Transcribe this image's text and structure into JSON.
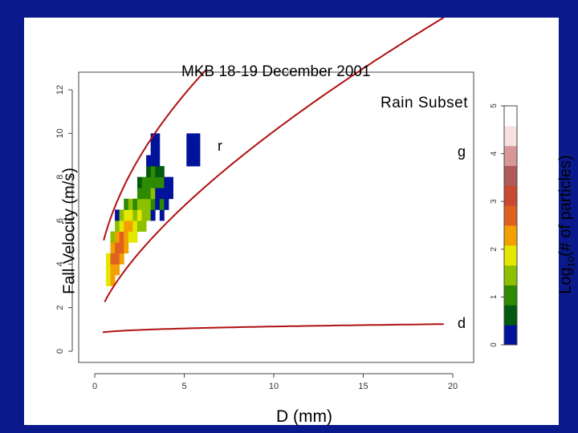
{
  "chart_data": {
    "type": "heatmap",
    "title": "MKB 18-19 December 2001",
    "subtitle": "Rain Subset",
    "xlabel": "D (mm)",
    "ylabel": "Fall Velocity (m/s)",
    "colorbar_label": "Log10(# of particles)",
    "colorbar_label_main": "Log",
    "colorbar_label_sub": "10",
    "colorbar_label_rest": "(# of particles)",
    "xlim": [
      0,
      20
    ],
    "ylim": [
      0,
      12
    ],
    "x_ticks": [
      "0",
      "5",
      "10",
      "15",
      "20"
    ],
    "y_ticks": [
      "0",
      "2",
      "4",
      "6",
      "8",
      "10",
      "12"
    ],
    "colorbar_lim": [
      0,
      5
    ],
    "colorbar_ticks": [
      "0",
      "1",
      "2",
      "3",
      "4",
      "5"
    ],
    "colorbar_colors": [
      "#00139a",
      "#005a10",
      "#2e8a00",
      "#8cc000",
      "#e4e800",
      "#f2a000",
      "#e06020",
      "#c84a30",
      "#b05a5a",
      "#d89898",
      "#f6e0e0",
      "#ffffff"
    ],
    "grid": false,
    "curves": [
      {
        "name": "r",
        "a": 2.1,
        "b": 4.26,
        "c": 0.51,
        "x0": 0.5,
        "x1": 6.2,
        "color": "#b01010"
      },
      {
        "name": "g",
        "a": 1.0,
        "b": 1.9,
        "c": 0.68,
        "x0": 0.55,
        "x1": 19.5,
        "color": "#b01010"
      },
      {
        "name": "d",
        "a": 0.75,
        "b": 0.16,
        "c": 0.38,
        "x0": 0.45,
        "x1": 19.5,
        "color": "#b01010"
      }
    ],
    "curve_labels": [
      "r",
      "g",
      "d"
    ],
    "bin_width_mm": 0.25,
    "bin_height_ms": 0.5,
    "cells": [
      {
        "x": 0.75,
        "y": 3.25,
        "v": 1.9
      },
      {
        "x": 0.75,
        "y": 3.75,
        "v": 2.0
      },
      {
        "x": 0.75,
        "y": 4.25,
        "v": 2.1
      },
      {
        "x": 1.0,
        "y": 3.25,
        "v": 2.3
      },
      {
        "x": 1.0,
        "y": 3.75,
        "v": 2.6
      },
      {
        "x": 1.0,
        "y": 4.25,
        "v": 2.8
      },
      {
        "x": 1.0,
        "y": 4.75,
        "v": 2.4
      },
      {
        "x": 1.0,
        "y": 5.25,
        "v": 1.8
      },
      {
        "x": 1.25,
        "y": 3.75,
        "v": 2.3
      },
      {
        "x": 1.25,
        "y": 4.25,
        "v": 2.9
      },
      {
        "x": 1.25,
        "y": 4.75,
        "v": 3.1
      },
      {
        "x": 1.25,
        "y": 5.25,
        "v": 2.6
      },
      {
        "x": 1.25,
        "y": 5.75,
        "v": 1.7
      },
      {
        "x": 1.25,
        "y": 6.25,
        "v": 0.3
      },
      {
        "x": 1.5,
        "y": 4.25,
        "v": 2.6
      },
      {
        "x": 1.5,
        "y": 4.75,
        "v": 3.0
      },
      {
        "x": 1.5,
        "y": 5.25,
        "v": 2.9
      },
      {
        "x": 1.5,
        "y": 5.75,
        "v": 2.2
      },
      {
        "x": 1.5,
        "y": 6.25,
        "v": 1.5
      },
      {
        "x": 1.75,
        "y": 4.75,
        "v": 2.4
      },
      {
        "x": 1.75,
        "y": 5.25,
        "v": 2.7
      },
      {
        "x": 1.75,
        "y": 5.75,
        "v": 2.6
      },
      {
        "x": 1.75,
        "y": 6.25,
        "v": 1.9
      },
      {
        "x": 1.75,
        "y": 6.75,
        "v": 1.2
      },
      {
        "x": 2.0,
        "y": 5.25,
        "v": 2.2
      },
      {
        "x": 2.0,
        "y": 5.75,
        "v": 2.3
      },
      {
        "x": 2.0,
        "y": 6.25,
        "v": 2.1
      },
      {
        "x": 2.0,
        "y": 6.75,
        "v": 1.5
      },
      {
        "x": 2.25,
        "y": 5.25,
        "v": 1.9
      },
      {
        "x": 2.25,
        "y": 5.75,
        "v": 2.0
      },
      {
        "x": 2.25,
        "y": 6.25,
        "v": 1.8
      },
      {
        "x": 2.25,
        "y": 6.75,
        "v": 1.3
      },
      {
        "x": 2.5,
        "y": 5.75,
        "v": 1.8
      },
      {
        "x": 2.5,
        "y": 6.25,
        "v": 1.9
      },
      {
        "x": 2.5,
        "y": 6.75,
        "v": 1.6
      },
      {
        "x": 2.5,
        "y": 7.25,
        "v": 1.2
      },
      {
        "x": 2.5,
        "y": 7.75,
        "v": 0.9
      },
      {
        "x": 2.75,
        "y": 5.75,
        "v": 1.4
      },
      {
        "x": 2.75,
        "y": 6.25,
        "v": 1.5
      },
      {
        "x": 2.75,
        "y": 6.75,
        "v": 1.7
      },
      {
        "x": 2.75,
        "y": 7.25,
        "v": 1.2
      },
      {
        "x": 2.75,
        "y": 7.75,
        "v": 1.0
      },
      {
        "x": 3.0,
        "y": 6.25,
        "v": 1.4
      },
      {
        "x": 3.0,
        "y": 6.75,
        "v": 1.6
      },
      {
        "x": 3.0,
        "y": 7.25,
        "v": 1.3
      },
      {
        "x": 3.0,
        "y": 7.75,
        "v": 1.1
      },
      {
        "x": 3.0,
        "y": 8.25,
        "v": 0.9
      },
      {
        "x": 3.0,
        "y": 8.75,
        "v": 0.3
      },
      {
        "x": 3.25,
        "y": 6.25,
        "v": 0.3
      },
      {
        "x": 3.25,
        "y": 6.75,
        "v": 1.2
      },
      {
        "x": 3.25,
        "y": 7.25,
        "v": 1.4
      },
      {
        "x": 3.25,
        "y": 7.75,
        "v": 1.1
      },
      {
        "x": 3.25,
        "y": 8.25,
        "v": 1.0
      },
      {
        "x": 3.25,
        "y": 8.75,
        "v": 0.3
      },
      {
        "x": 3.25,
        "y": 9.25,
        "v": 0.3
      },
      {
        "x": 3.25,
        "y": 9.75,
        "v": 0.3
      },
      {
        "x": 3.5,
        "y": 6.75,
        "v": 0.3
      },
      {
        "x": 3.5,
        "y": 7.25,
        "v": 0.3
      },
      {
        "x": 3.5,
        "y": 7.75,
        "v": 1.0
      },
      {
        "x": 3.5,
        "y": 8.25,
        "v": 0.9
      },
      {
        "x": 3.5,
        "y": 8.75,
        "v": 0.3
      },
      {
        "x": 3.5,
        "y": 9.25,
        "v": 0.3
      },
      {
        "x": 3.5,
        "y": 9.75,
        "v": 0.3
      },
      {
        "x": 3.75,
        "y": 6.25,
        "v": 0.3
      },
      {
        "x": 3.75,
        "y": 6.75,
        "v": 1.0
      },
      {
        "x": 3.75,
        "y": 7.25,
        "v": 0.3
      },
      {
        "x": 3.75,
        "y": 7.75,
        "v": 1.0
      },
      {
        "x": 3.75,
        "y": 8.25,
        "v": 0.9
      },
      {
        "x": 4.0,
        "y": 6.75,
        "v": 0.3
      },
      {
        "x": 4.0,
        "y": 7.25,
        "v": 0.3
      },
      {
        "x": 4.0,
        "y": 7.75,
        "v": 0.3
      },
      {
        "x": 4.25,
        "y": 7.25,
        "v": 0.3
      },
      {
        "x": 4.25,
        "y": 7.75,
        "v": 0.3
      },
      {
        "x": 5.25,
        "y": 8.75,
        "v": 0.3
      },
      {
        "x": 5.25,
        "y": 9.25,
        "v": 0.3
      },
      {
        "x": 5.25,
        "y": 9.75,
        "v": 0.3
      },
      {
        "x": 5.5,
        "y": 8.75,
        "v": 0.3
      },
      {
        "x": 5.5,
        "y": 9.25,
        "v": 0.3
      },
      {
        "x": 5.5,
        "y": 9.75,
        "v": 0.3
      },
      {
        "x": 5.75,
        "y": 8.75,
        "v": 0.3
      },
      {
        "x": 5.75,
        "y": 9.25,
        "v": 0.3
      },
      {
        "x": 5.75,
        "y": 9.75,
        "v": 0.3
      }
    ]
  }
}
